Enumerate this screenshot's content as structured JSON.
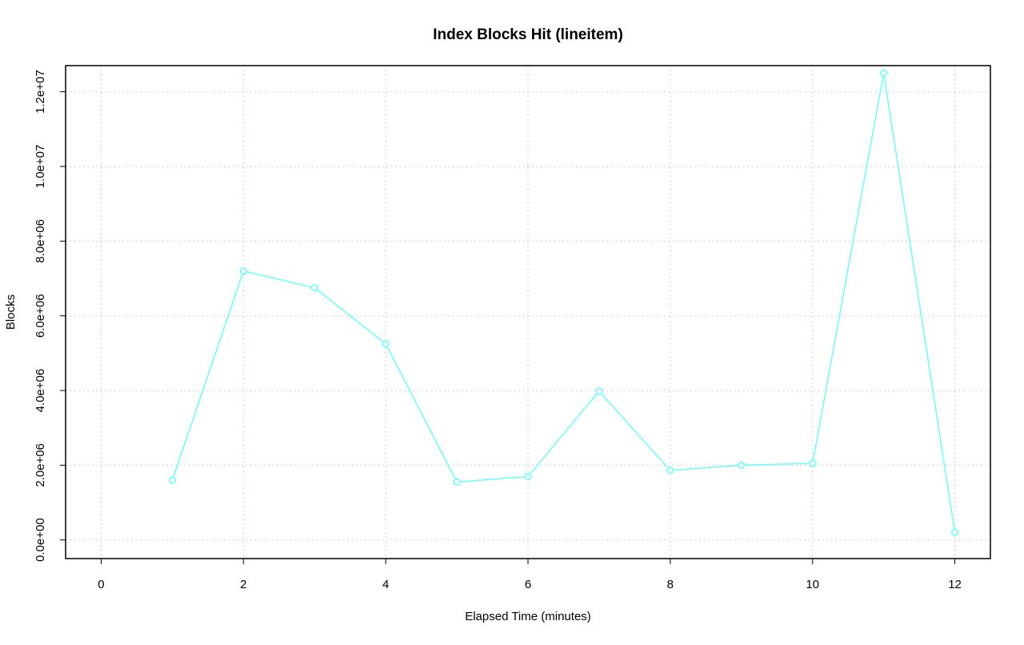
{
  "chart_data": {
    "type": "line",
    "title": "Index Blocks Hit (lineitem)",
    "xlabel": "Elapsed Time (minutes)",
    "ylabel": "Blocks",
    "xlim": [
      -0.5,
      12.5
    ],
    "ylim": [
      -500000,
      12700000
    ],
    "x_ticks": [
      0,
      2,
      4,
      6,
      8,
      10,
      12
    ],
    "x_tick_labels": [
      "0",
      "2",
      "4",
      "6",
      "8",
      "10",
      "12"
    ],
    "y_ticks": [
      0,
      2000000,
      4000000,
      6000000,
      8000000,
      10000000,
      12000000
    ],
    "y_tick_labels": [
      "0.0e+00",
      "2.0e+06",
      "4.0e+06",
      "6.0e+06",
      "8.0e+06",
      "1.0e+07",
      "1.2e+07"
    ],
    "grid": true,
    "series": [
      {
        "color": "#66ffff",
        "marker": "circle",
        "x": [
          1,
          2,
          3,
          4,
          5,
          6,
          7,
          8,
          9,
          10,
          11,
          12
        ],
        "y": [
          1600000,
          7200000,
          6750000,
          5250000,
          1550000,
          1700000,
          3980000,
          1860000,
          2000000,
          2050000,
          12500000,
          200000
        ]
      }
    ]
  }
}
